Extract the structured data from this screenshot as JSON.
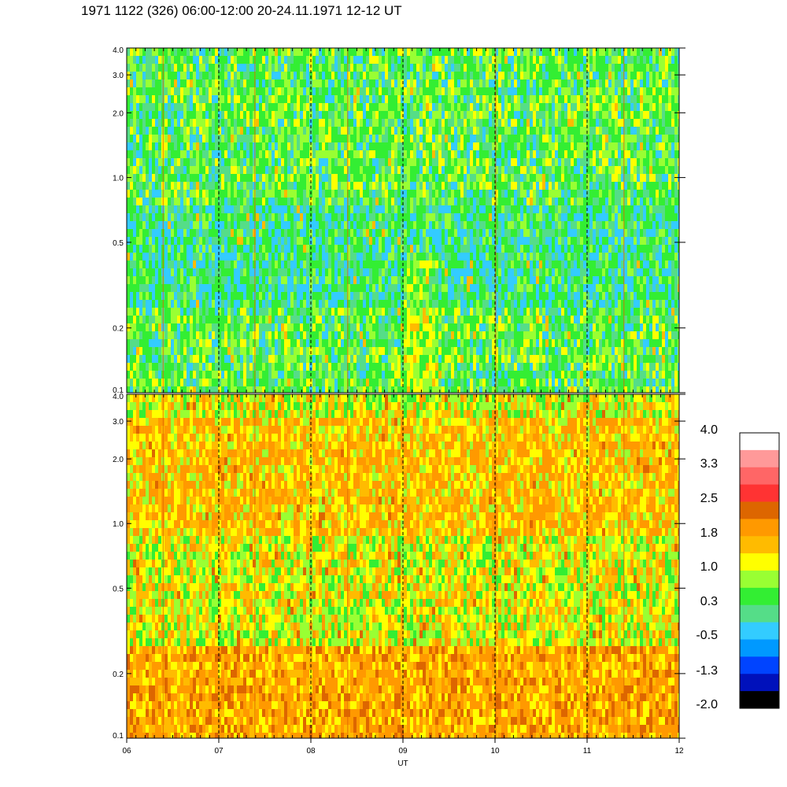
{
  "title": "1971 1122 (326) 06:00-12:00 20-24.11.1971  12-12 UT",
  "chart_data": [
    {
      "type": "heatmap",
      "panel": "upper",
      "x_range": [
        6,
        12
      ],
      "x_ticks": [
        "06",
        "07",
        "08",
        "09",
        "10",
        "11",
        "12"
      ],
      "y_scale": "log",
      "y_range": [
        0.1,
        4.0
      ],
      "y_ticks": [
        {
          "value": 0.1,
          "label": "0.1"
        },
        {
          "value": 0.2,
          "label": "0.2"
        },
        {
          "value": 0.5,
          "label": "0.5"
        },
        {
          "value": 1.0,
          "label": "1.0"
        },
        {
          "value": 2.0,
          "label": "2.0"
        },
        {
          "value": 3.0,
          "label": "3.0"
        },
        {
          "value": 4.0,
          "label": "4.0"
        }
      ],
      "dominant_levels": [
        -0.5,
        0.3,
        1.0
      ],
      "dashed_vertical_lines": [
        7,
        8,
        9,
        10,
        11
      ],
      "grid": false
    },
    {
      "type": "heatmap",
      "panel": "lower",
      "x_range": [
        6,
        12
      ],
      "x_ticks": [
        "06",
        "07",
        "08",
        "09",
        "10",
        "11",
        "12"
      ],
      "xlabel": "UT",
      "y_scale": "log",
      "y_range": [
        0.1,
        4.0
      ],
      "y_ticks": [
        {
          "value": 0.1,
          "label": "0.1"
        },
        {
          "value": 0.2,
          "label": "0.2"
        },
        {
          "value": 0.5,
          "label": "0.5"
        },
        {
          "value": 1.0,
          "label": "1.0"
        },
        {
          "value": 2.0,
          "label": "2.0"
        },
        {
          "value": 3.0,
          "label": "3.0"
        },
        {
          "value": 4.0,
          "label": "4.0"
        }
      ],
      "dominant_levels": [
        0.3,
        1.0,
        1.8,
        2.5
      ],
      "dashed_vertical_lines": [
        7,
        8,
        9,
        10,
        11
      ],
      "grid": false
    }
  ],
  "colorbar": {
    "labels": [
      "4.0",
      "3.3",
      "2.5",
      "1.8",
      "1.0",
      "0.3",
      "-0.5",
      "-1.3",
      "-2.0"
    ],
    "colors_top_to_bottom": [
      "#ffffff",
      "#ff9999",
      "#ff6666",
      "#ff3333",
      "#dd6600",
      "#ff9900",
      "#ffbb00",
      "#ffff00",
      "#99ff33",
      "#33ee33",
      "#55dd88",
      "#33ccff",
      "#0099ff",
      "#0044ff",
      "#0011bb",
      "#000000"
    ]
  }
}
